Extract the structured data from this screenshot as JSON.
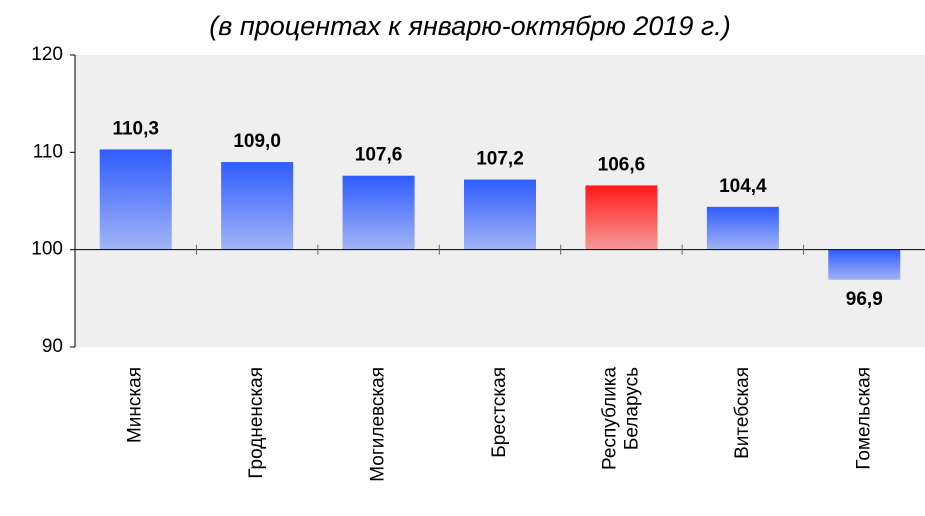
{
  "chart_data": {
    "type": "bar",
    "title": "(в процентах к январю-октябрю 2019 г.)",
    "categories": [
      "Минская",
      "Гродненская",
      "Могилевская",
      "Брестская",
      "Республика Беларусь",
      "Витебская",
      "Гомельская"
    ],
    "values": [
      110.3,
      109.0,
      107.6,
      107.2,
      106.6,
      104.4,
      96.9
    ],
    "value_labels": [
      "110,3",
      "109,0",
      "107,6",
      "107,2",
      "106,6",
      "104,4",
      "96,9"
    ],
    "colors": [
      "#2f5cff",
      "#2f5cff",
      "#2f5cff",
      "#2f5cff",
      "#ff1a1a",
      "#2f5cff",
      "#2f5cff"
    ],
    "baseline": 100,
    "ylim": [
      90,
      120
    ],
    "yticks": [
      90,
      100,
      110,
      120
    ]
  }
}
